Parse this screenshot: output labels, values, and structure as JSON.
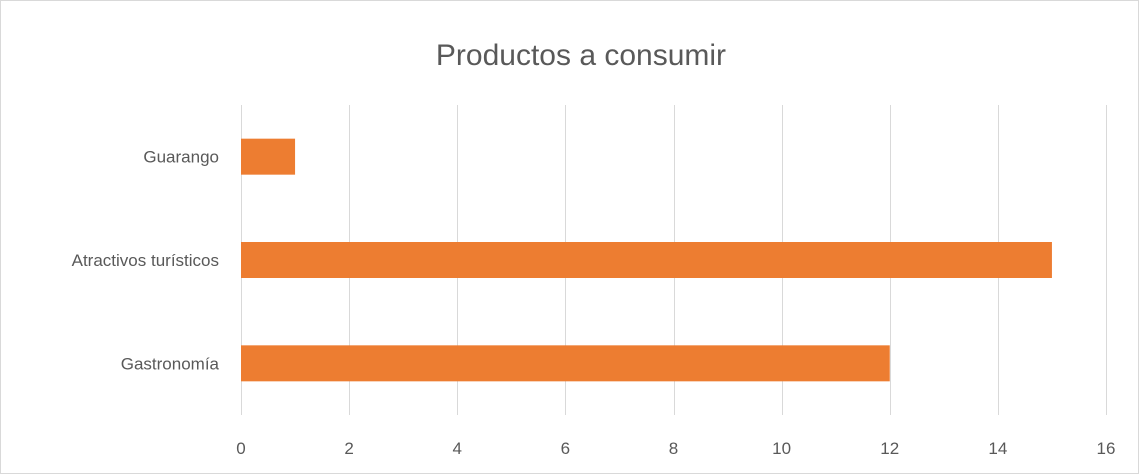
{
  "chart_data": {
    "type": "bar",
    "orientation": "horizontal",
    "title": "Productos a consumir",
    "categories": [
      "Guarango",
      "Atractivos turísticos",
      "Gastronomía"
    ],
    "values": [
      1,
      15,
      12
    ],
    "xlim": [
      0,
      16
    ],
    "x_ticks": [
      0,
      2,
      4,
      6,
      8,
      10,
      12,
      14,
      16
    ],
    "grid": true,
    "legend": "none",
    "bar_color": "#ed7d31"
  }
}
